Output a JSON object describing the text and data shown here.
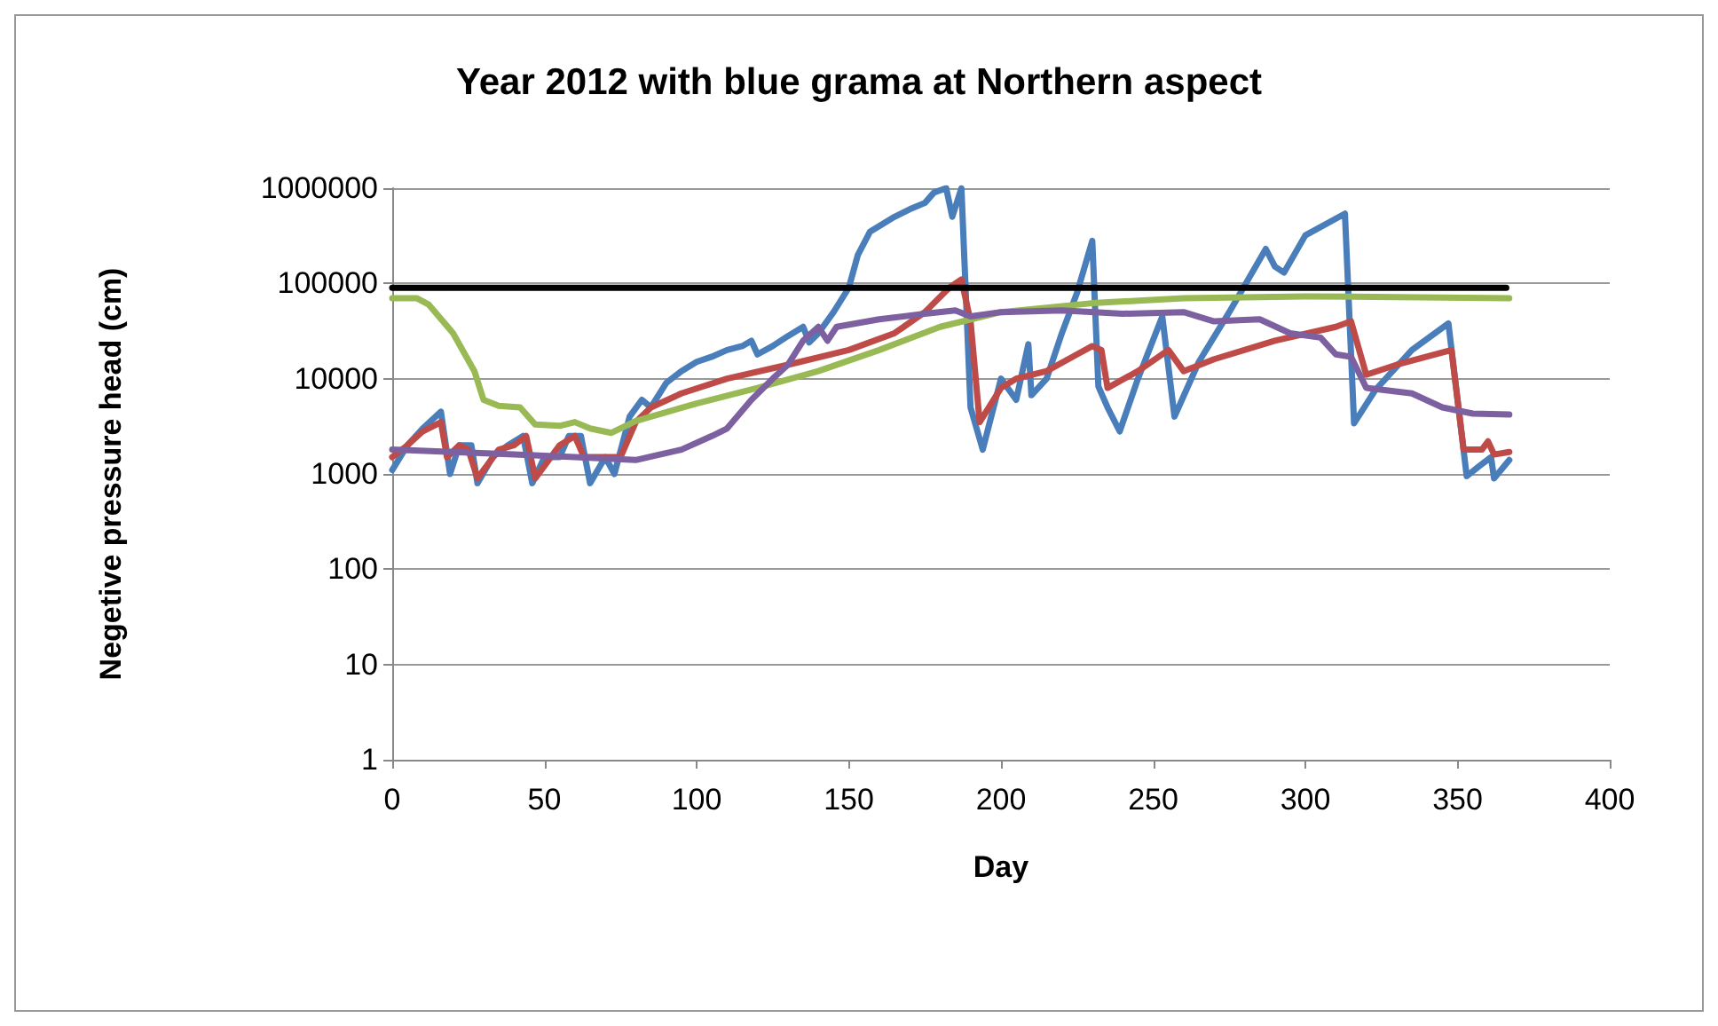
{
  "chart_data": {
    "type": "line",
    "title": "Year 2012 with blue grama at Northern aspect",
    "xlabel": "Day",
    "ylabel": "Negetive pressure head (cm)",
    "xlim": [
      0,
      400
    ],
    "xticks": [
      0,
      50,
      100,
      150,
      200,
      250,
      300,
      350,
      400
    ],
    "ylim": [
      1,
      1000000
    ],
    "yticks": [
      1,
      10,
      100,
      1000,
      10000,
      100000,
      1000000
    ],
    "log": "y",
    "grid": "y",
    "marker": "none",
    "line_style": "solid",
    "series": [
      {
        "color": "#4a7ebb",
        "x": [
          0,
          5,
          10,
          16,
          19,
          22,
          26,
          28,
          33,
          38,
          43,
          46,
          50,
          55,
          58,
          62,
          65,
          70,
          73,
          78,
          82,
          85,
          90,
          95,
          100,
          105,
          110,
          115,
          118,
          120,
          125,
          130,
          135,
          137,
          140,
          145,
          150,
          153,
          157,
          160,
          165,
          170,
          175,
          178,
          182,
          184,
          187,
          190,
          194,
          200,
          205,
          209,
          210,
          215,
          220,
          225,
          230,
          232,
          235,
          239,
          245,
          253,
          257,
          265,
          275,
          287,
          290,
          293,
          300,
          313,
          316,
          323,
          335,
          347,
          353,
          357,
          361,
          362,
          367
        ],
        "values": [
          1100,
          2000,
          3000,
          4500,
          1000,
          2000,
          2000,
          800,
          1500,
          2000,
          2500,
          800,
          1500,
          1500,
          2500,
          2500,
          800,
          1500,
          1000,
          4000,
          6000,
          5000,
          9000,
          12000,
          15000,
          17000,
          20000,
          22000,
          25000,
          18000,
          22000,
          28000,
          35000,
          24000,
          30000,
          50000,
          90000,
          200000,
          350000,
          400000,
          500000,
          600000,
          700000,
          900000,
          1000000,
          500000,
          1000000,
          5000,
          1800,
          10000,
          6000,
          23000,
          6700,
          10000,
          30000,
          80000,
          280000,
          8300,
          5000,
          2800,
          10000,
          45000,
          4000,
          15000,
          50000,
          230000,
          150000,
          130000,
          320000,
          540000,
          3400,
          7600,
          20000,
          38000,
          950,
          1200,
          1500,
          900,
          1400
        ]
      },
      {
        "color": "#be4b48",
        "x": [
          0,
          5,
          10,
          16,
          18,
          22,
          25,
          28,
          35,
          40,
          44,
          47,
          55,
          60,
          63,
          68,
          75,
          80,
          85,
          95,
          110,
          130,
          150,
          165,
          175,
          183,
          187,
          190,
          193,
          200,
          205,
          215,
          225,
          230,
          233,
          235,
          245,
          255,
          260,
          270,
          290,
          310,
          315,
          320,
          330,
          348,
          352,
          358,
          360,
          362,
          367
        ],
        "values": [
          1500,
          2000,
          2800,
          3500,
          1500,
          2000,
          1800,
          900,
          1800,
          2000,
          2500,
          900,
          2000,
          2500,
          1500,
          1500,
          1500,
          3500,
          5000,
          7000,
          10000,
          14000,
          20000,
          30000,
          50000,
          90000,
          110000,
          40000,
          3500,
          8000,
          10000,
          12000,
          18000,
          22000,
          20000,
          8000,
          12000,
          20000,
          12000,
          16000,
          25000,
          35000,
          40000,
          11000,
          14000,
          20000,
          1800,
          1800,
          2200,
          1600,
          1700
        ]
      },
      {
        "color": "#98b954",
        "x": [
          0,
          8,
          12,
          20,
          27,
          30,
          35,
          42,
          47,
          55,
          60,
          65,
          72,
          80,
          100,
          120,
          140,
          160,
          180,
          200,
          230,
          260,
          300,
          330,
          367
        ],
        "values": [
          70000,
          70000,
          60000,
          30000,
          12000,
          6000,
          5200,
          5000,
          3300,
          3200,
          3500,
          3000,
          2700,
          3600,
          5500,
          8000,
          12000,
          20000,
          35000,
          50000,
          62000,
          70000,
          73000,
          72000,
          70000
        ]
      },
      {
        "color": "#7d60a0",
        "x": [
          0,
          20,
          40,
          60,
          80,
          95,
          105,
          110,
          118,
          125,
          130,
          135,
          140,
          143,
          146,
          160,
          175,
          185,
          190,
          200,
          220,
          240,
          260,
          270,
          285,
          295,
          305,
          310,
          315,
          320,
          335,
          345,
          355,
          367
        ],
        "values": [
          1800,
          1700,
          1600,
          1500,
          1400,
          1800,
          2500,
          3000,
          6000,
          10000,
          14000,
          25000,
          35000,
          25000,
          35000,
          42000,
          48000,
          52000,
          45000,
          50000,
          52000,
          48000,
          50000,
          40000,
          42000,
          30000,
          27000,
          18000,
          17000,
          8000,
          7000,
          5000,
          4300,
          4200
        ]
      },
      {
        "color": "#000000",
        "x": [
          0,
          366
        ],
        "values": [
          90000,
          90000
        ]
      }
    ]
  }
}
